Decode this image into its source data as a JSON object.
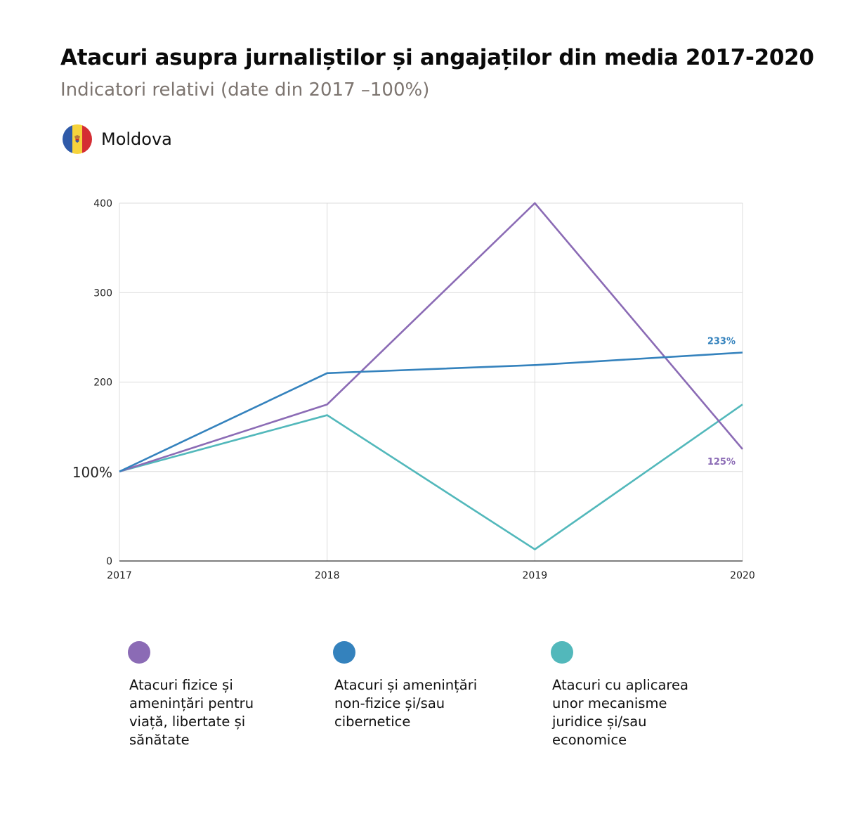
{
  "header": {
    "title": "Atacuri asupra jurnaliștilor și angajaților din media 2017-2020",
    "subtitle": "Indicatori relativi (date din 2017 –100%)",
    "country": "Moldova",
    "flag_icon": "moldova-flag-icon",
    "flag_colors": [
      "#2f5aa8",
      "#f6d33c",
      "#d42d33"
    ]
  },
  "chart_data": {
    "type": "line",
    "title": "Atacuri asupra jurnaliștilor și angajaților din media 2017-2020",
    "subtitle": "Indicatori relativi (date din 2017 –100%)",
    "xlabel": "",
    "ylabel": "",
    "x": [
      "2017",
      "2018",
      "2019",
      "2020"
    ],
    "ylim": [
      0,
      400
    ],
    "yticks": [
      {
        "value": 0,
        "label": "0"
      },
      {
        "value": 100,
        "label": "100%"
      },
      {
        "value": 200,
        "label": "200"
      },
      {
        "value": 300,
        "label": "300"
      },
      {
        "value": 400,
        "label": "400"
      }
    ],
    "grid": true,
    "legend_position": "bottom",
    "series": [
      {
        "name": "Atacuri fizice și amenințări pentru viață, libertate și sănătate",
        "color": "#8b6bb5",
        "values": [
          100,
          175,
          400,
          125
        ],
        "end_label": "125%"
      },
      {
        "name": "Atacuri și amenințări non-fizice și/sau cibernetice",
        "color": "#3482bd",
        "values": [
          100,
          210,
          219,
          233
        ],
        "end_label": "233%"
      },
      {
        "name": "Atacuri cu aplicarea unor mecanisme juridice și/sau economice",
        "color": "#52b8bb",
        "values": [
          100,
          163,
          13,
          175
        ],
        "end_label": null
      }
    ]
  },
  "legend": [
    {
      "label": "Atacuri fizice și\namenințări pentru\nviață, libertate și\nsănătate",
      "color": "#8b6bb5"
    },
    {
      "label": "Atacuri și amenințări\nnon-fizice și/sau\ncibernetice",
      "color": "#3482bd"
    },
    {
      "label": "Atacuri cu aplicarea\nunor mecanisme\njuridice și/sau\neconomice",
      "color": "#52b8bb"
    }
  ]
}
